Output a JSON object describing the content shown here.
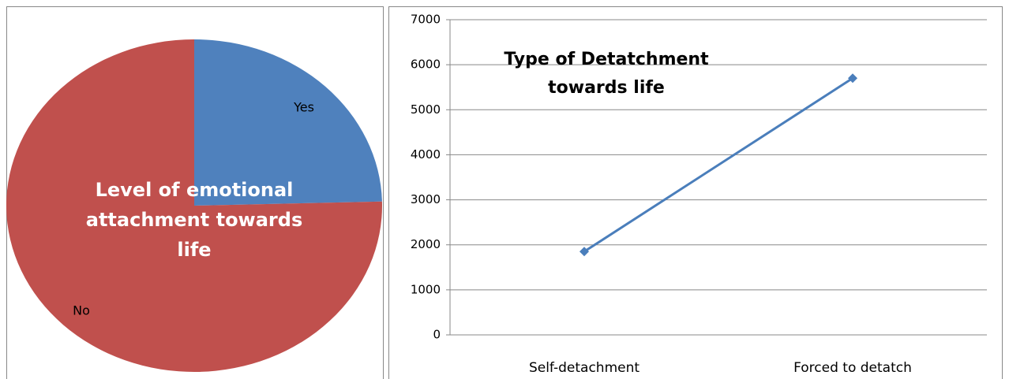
{
  "chart_data": [
    {
      "type": "pie",
      "title": "Level of emotional attachment towards life",
      "categories": [
        "Yes",
        "No"
      ],
      "values": [
        24.6,
        75.4
      ],
      "colors": [
        "#4f81bd",
        "#c0504d"
      ]
    },
    {
      "type": "line",
      "title": "Type of Detatchment towards life",
      "categories": [
        "Self-detachment",
        "Forced to detatch"
      ],
      "series": [
        {
          "name": null,
          "color": "#4a7ebb",
          "values": [
            1850,
            5700
          ]
        }
      ],
      "ylim": [
        0,
        7000
      ],
      "yticks": [
        0,
        1000,
        2000,
        3000,
        4000,
        5000,
        6000,
        7000
      ],
      "grid": true
    }
  ]
}
